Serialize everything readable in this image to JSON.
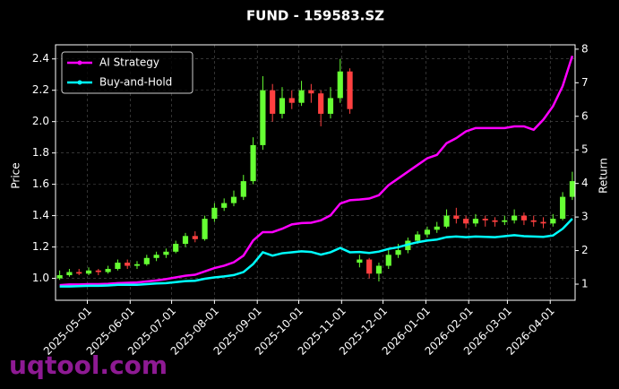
{
  "chart_data": {
    "type": "candlestick",
    "title": "FUND - 159583.SZ",
    "ylabel": "Price",
    "y2label": "Return",
    "watermark": "uqtool.com",
    "x": [
      "2025-04-11",
      "2025-04-18",
      "2025-04-25",
      "2025-05-02",
      "2025-05-09",
      "2025-05-16",
      "2025-05-23",
      "2025-05-30",
      "2025-06-06",
      "2025-06-13",
      "2025-06-20",
      "2025-06-27",
      "2025-07-04",
      "2025-07-11",
      "2025-07-18",
      "2025-07-25",
      "2025-08-01",
      "2025-08-08",
      "2025-08-15",
      "2025-08-22",
      "2025-08-29",
      "2025-09-05",
      "2025-09-12",
      "2025-09-19",
      "2025-09-26",
      "2025-10-03",
      "2025-10-10",
      "2025-10-17",
      "2025-10-24",
      "2025-10-31",
      "2025-11-07",
      "2025-11-14",
      "2025-11-21",
      "2025-11-28",
      "2025-12-05",
      "2025-12-12",
      "2025-12-19",
      "2025-12-26",
      "2026-01-02",
      "2026-01-09",
      "2026-01-16",
      "2026-01-23",
      "2026-01-30",
      "2026-02-06",
      "2026-02-13",
      "2026-02-20",
      "2026-02-27",
      "2026-03-06",
      "2026-03-13",
      "2026-03-20",
      "2026-03-27",
      "2026-04-03",
      "2026-04-10",
      "2026-04-17"
    ],
    "open": [
      1.0,
      1.02,
      1.04,
      1.03,
      1.05,
      1.04,
      1.06,
      1.1,
      1.08,
      1.09,
      1.13,
      1.15,
      1.17,
      1.22,
      1.27,
      1.25,
      1.38,
      1.45,
      1.48,
      1.52,
      1.62,
      1.85,
      2.2,
      2.05,
      2.15,
      2.12,
      2.2,
      2.18,
      2.05,
      2.15,
      2.32,
      1.1,
      1.12,
      1.03,
      1.08,
      1.15,
      1.18,
      1.24,
      1.28,
      1.31,
      1.33,
      1.4,
      1.38,
      1.35,
      1.38,
      1.37,
      1.36,
      1.37,
      1.4,
      1.37,
      1.36,
      1.35,
      1.38,
      1.52
    ],
    "high": [
      1.05,
      1.06,
      1.06,
      1.07,
      1.06,
      1.08,
      1.12,
      1.12,
      1.11,
      1.15,
      1.17,
      1.19,
      1.24,
      1.29,
      1.3,
      1.4,
      1.48,
      1.51,
      1.56,
      1.66,
      1.9,
      2.29,
      2.24,
      2.22,
      2.2,
      2.26,
      2.24,
      2.2,
      2.22,
      2.4,
      2.34,
      1.15,
      1.13,
      1.1,
      1.18,
      1.22,
      1.26,
      1.3,
      1.33,
      1.36,
      1.44,
      1.45,
      1.4,
      1.41,
      1.4,
      1.39,
      1.4,
      1.44,
      1.42,
      1.4,
      1.39,
      1.41,
      1.55,
      1.68
    ],
    "low": [
      0.99,
      1.01,
      1.02,
      1.02,
      1.02,
      1.03,
      1.05,
      1.06,
      1.06,
      1.08,
      1.11,
      1.13,
      1.16,
      1.2,
      1.23,
      1.24,
      1.36,
      1.43,
      1.46,
      1.5,
      1.6,
      1.82,
      2.0,
      2.02,
      2.08,
      2.1,
      2.12,
      1.97,
      2.02,
      2.12,
      2.05,
      1.07,
      1.0,
      0.98,
      1.06,
      1.13,
      1.16,
      1.22,
      1.26,
      1.29,
      1.32,
      1.35,
      1.32,
      1.33,
      1.33,
      1.33,
      1.34,
      1.35,
      1.34,
      1.33,
      1.32,
      1.33,
      1.37,
      1.5
    ],
    "close": [
      1.02,
      1.04,
      1.03,
      1.05,
      1.04,
      1.06,
      1.1,
      1.08,
      1.09,
      1.13,
      1.15,
      1.17,
      1.22,
      1.27,
      1.25,
      1.38,
      1.45,
      1.48,
      1.52,
      1.62,
      1.85,
      2.2,
      2.05,
      2.15,
      2.12,
      2.2,
      2.18,
      2.05,
      2.15,
      2.32,
      2.08,
      1.12,
      1.03,
      1.08,
      1.15,
      1.18,
      1.24,
      1.28,
      1.31,
      1.33,
      1.4,
      1.38,
      1.35,
      1.38,
      1.37,
      1.36,
      1.37,
      1.4,
      1.37,
      1.36,
      1.35,
      1.38,
      1.52,
      1.62
    ],
    "up_color": "#66ff33",
    "down_color": "#ff4040",
    "series": [
      {
        "name": "AI Strategy",
        "color": "#ff00ff",
        "axis": "y2",
        "values": [
          0.97,
          0.99,
          0.99,
          1.0,
          1.0,
          1.01,
          1.03,
          1.04,
          1.05,
          1.08,
          1.11,
          1.15,
          1.2,
          1.25,
          1.28,
          1.38,
          1.48,
          1.55,
          1.65,
          1.85,
          2.3,
          2.55,
          2.55,
          2.65,
          2.78,
          2.82,
          2.83,
          2.9,
          3.05,
          3.4,
          3.5,
          3.52,
          3.55,
          3.65,
          3.95,
          4.15,
          4.35,
          4.55,
          4.75,
          4.85,
          5.2,
          5.35,
          5.55,
          5.65,
          5.65,
          5.65,
          5.65,
          5.7,
          5.7,
          5.6,
          5.9,
          6.3,
          6.9,
          7.8
        ]
      },
      {
        "name": "Buy-and-Hold",
        "color": "#00ffff",
        "axis": "y2",
        "values": [
          0.93,
          0.93,
          0.94,
          0.95,
          0.95,
          0.96,
          0.98,
          0.98,
          0.98,
          1.0,
          1.02,
          1.03,
          1.06,
          1.09,
          1.1,
          1.16,
          1.2,
          1.23,
          1.27,
          1.36,
          1.6,
          1.95,
          1.85,
          1.92,
          1.95,
          1.98,
          1.96,
          1.88,
          1.95,
          2.08,
          1.95,
          1.96,
          1.93,
          1.97,
          2.05,
          2.1,
          2.18,
          2.25,
          2.3,
          2.33,
          2.4,
          2.42,
          2.4,
          2.42,
          2.41,
          2.4,
          2.43,
          2.46,
          2.43,
          2.42,
          2.41,
          2.45,
          2.65,
          2.95
        ]
      }
    ],
    "xlim": [
      "2025-04-08",
      "2026-04-19"
    ],
    "xticks": [
      "2025-05-01",
      "2025-06-01",
      "2025-07-01",
      "2025-08-01",
      "2025-09-01",
      "2025-10-01",
      "2025-11-01",
      "2025-12-01",
      "2026-01-01",
      "2026-02-01",
      "2026-03-01",
      "2026-04-01"
    ],
    "ylim": [
      0.86,
      2.49
    ],
    "yticks": [
      {
        "value": 1,
        "label": "1.0"
      },
      1.2,
      1.4,
      1.6,
      1.8,
      {
        "value": 2,
        "label": "2.0"
      },
      2.2,
      2.4
    ],
    "y2lim": [
      0.52,
      8.13
    ],
    "y2ticks": [
      1,
      2,
      3,
      4,
      5,
      6,
      7,
      8
    ],
    "grid": true,
    "legend": "upper left"
  }
}
